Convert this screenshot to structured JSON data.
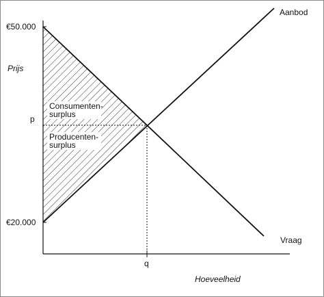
{
  "y_axis": {
    "label": "Prijs",
    "top_value": "€50.000",
    "bottom_value": "€20.000",
    "p_label": "p"
  },
  "x_axis": {
    "label": "Hoeveelheid",
    "q_label": "q"
  },
  "curves": {
    "supply_label": "Aanbod",
    "demand_label": "Vraag"
  },
  "areas": {
    "consumer_surplus_line1": "Consumenten-",
    "consumer_surplus_line2": "surplus",
    "producer_surplus_line1": "Producenten-",
    "producer_surplus_line2": "surplus"
  },
  "style": {
    "line_color": "#111111",
    "hatch_color": "#333333",
    "background": "#ffffff",
    "frame_color": "#8a8a8a"
  }
}
